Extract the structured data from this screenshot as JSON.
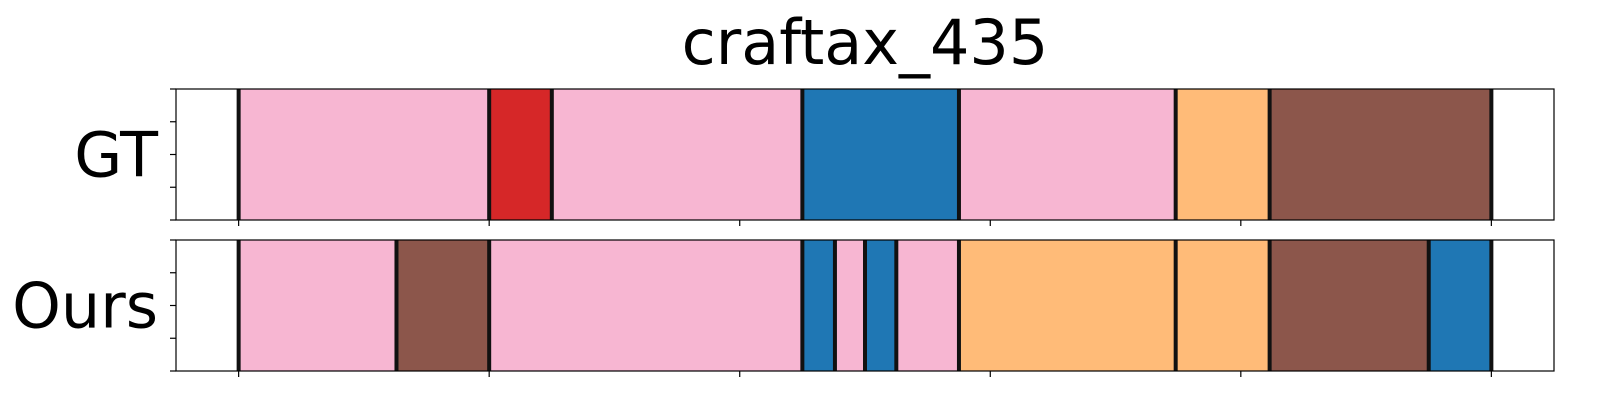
{
  "chart_data": {
    "type": "segmentation",
    "title": "craftax_435",
    "x_range": [
      -0.05,
      1.05
    ],
    "x_ticks": [
      0,
      0.2,
      0.4,
      0.6,
      0.8,
      1.0
    ],
    "colors": {
      "pink": "#f7b6d2",
      "red": "#d62728",
      "blue": "#1f77b4",
      "orange": "#ffbb78",
      "brown": "#8c564b"
    },
    "rows": [
      {
        "label": "GT",
        "segments": [
          {
            "start": 0.0,
            "end": 0.2,
            "color": "pink"
          },
          {
            "start": 0.2,
            "end": 0.25,
            "color": "red"
          },
          {
            "start": 0.25,
            "end": 0.45,
            "color": "pink"
          },
          {
            "start": 0.45,
            "end": 0.575,
            "color": "blue"
          },
          {
            "start": 0.575,
            "end": 0.748,
            "color": "pink"
          },
          {
            "start": 0.748,
            "end": 0.823,
            "color": "orange"
          },
          {
            "start": 0.823,
            "end": 1.0,
            "color": "brown"
          }
        ]
      },
      {
        "label": "Ours",
        "segments": [
          {
            "start": 0.0,
            "end": 0.126,
            "color": "pink"
          },
          {
            "start": 0.126,
            "end": 0.2,
            "color": "brown"
          },
          {
            "start": 0.2,
            "end": 0.45,
            "color": "pink"
          },
          {
            "start": 0.45,
            "end": 0.476,
            "color": "blue"
          },
          {
            "start": 0.476,
            "end": 0.5,
            "color": "pink"
          },
          {
            "start": 0.5,
            "end": 0.525,
            "color": "blue"
          },
          {
            "start": 0.525,
            "end": 0.575,
            "color": "pink"
          },
          {
            "start": 0.575,
            "end": 0.748,
            "color": "orange"
          },
          {
            "start": 0.748,
            "end": 0.823,
            "color": "orange"
          },
          {
            "start": 0.823,
            "end": 0.95,
            "color": "brown"
          },
          {
            "start": 0.95,
            "end": 1.0,
            "color": "blue"
          }
        ]
      }
    ]
  }
}
